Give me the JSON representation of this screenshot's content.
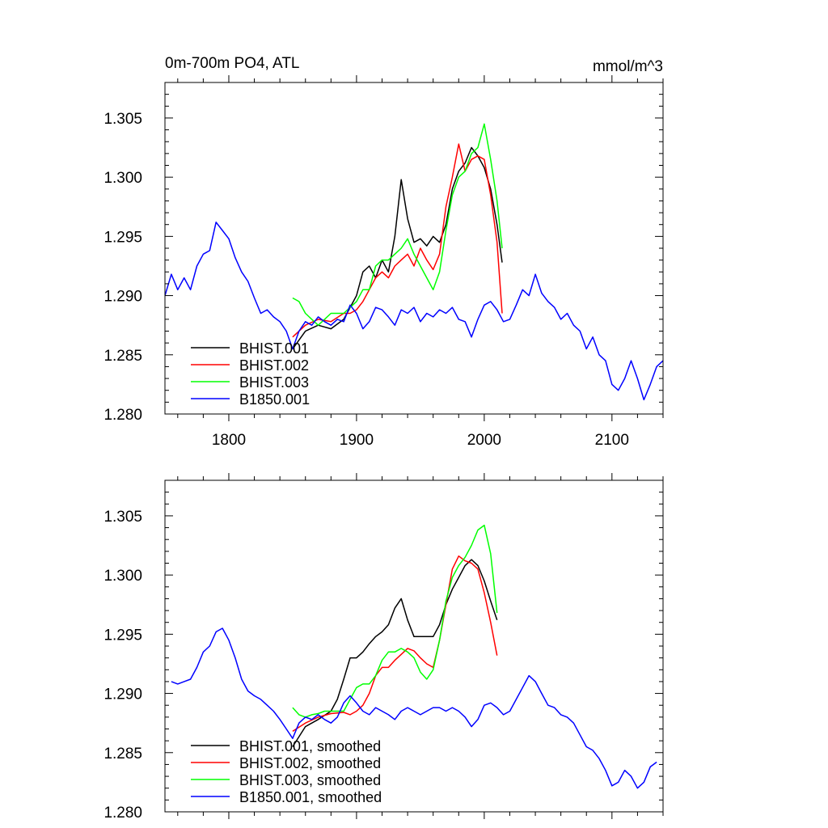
{
  "chart_data": [
    {
      "type": "line",
      "title": "0m-700m PO4, ATL",
      "units": "mmol/m^3",
      "xlim": [
        1750,
        2140
      ],
      "ylim": [
        1.28,
        1.308
      ],
      "xticks": [
        1800,
        1900,
        2000,
        2100
      ],
      "xtick_labels": [
        "1800",
        "1900",
        "2000",
        "2100"
      ],
      "yticks": [
        1.28,
        1.285,
        1.29,
        1.295,
        1.3,
        1.305
      ],
      "ytick_labels": [
        "1.280",
        "1.285",
        "1.290",
        "1.295",
        "1.300",
        "1.305"
      ],
      "legend_position": "bottom-left",
      "series": [
        {
          "name": "BHIST.001",
          "color": "#000000",
          "x": [
            1850,
            1860,
            1870,
            1880,
            1890,
            1900,
            1905,
            1910,
            1915,
            1920,
            1925,
            1930,
            1935,
            1940,
            1945,
            1950,
            1955,
            1960,
            1965,
            1970,
            1975,
            1980,
            1985,
            1990,
            1995,
            2000,
            2005,
            2010,
            2014
          ],
          "y": [
            1.2855,
            1.287,
            1.2875,
            1.2872,
            1.288,
            1.29,
            1.292,
            1.2925,
            1.2915,
            1.293,
            1.292,
            1.295,
            1.2998,
            1.2965,
            1.2945,
            1.2948,
            1.2942,
            1.295,
            1.2945,
            1.296,
            1.299,
            1.3005,
            1.3012,
            1.3025,
            1.3018,
            1.3008,
            1.299,
            1.296,
            1.2928
          ]
        },
        {
          "name": "BHIST.002",
          "color": "#ff0000",
          "x": [
            1850,
            1860,
            1870,
            1880,
            1890,
            1895,
            1900,
            1905,
            1910,
            1915,
            1920,
            1925,
            1930,
            1935,
            1940,
            1945,
            1950,
            1955,
            1960,
            1965,
            1970,
            1975,
            1980,
            1985,
            1990,
            1995,
            2000,
            2005,
            2010,
            2014
          ],
          "y": [
            1.2865,
            1.2875,
            1.288,
            1.2878,
            1.2885,
            1.2885,
            1.2888,
            1.2895,
            1.2905,
            1.2915,
            1.292,
            1.2915,
            1.2925,
            1.293,
            1.2935,
            1.2925,
            1.294,
            1.293,
            1.2922,
            1.2935,
            1.2975,
            1.3,
            1.3028,
            1.3005,
            1.3015,
            1.3018,
            1.3015,
            1.2985,
            1.2945,
            1.2885
          ]
        },
        {
          "name": "BHIST.003",
          "color": "#00ff00",
          "x": [
            1850,
            1855,
            1860,
            1865,
            1870,
            1875,
            1880,
            1890,
            1900,
            1905,
            1910,
            1915,
            1920,
            1925,
            1930,
            1935,
            1940,
            1945,
            1950,
            1955,
            1960,
            1965,
            1970,
            1975,
            1980,
            1985,
            1990,
            1995,
            2000,
            2005,
            2010,
            2014
          ],
          "y": [
            1.2898,
            1.2895,
            1.2885,
            1.288,
            1.2875,
            1.288,
            1.2885,
            1.2885,
            1.2895,
            1.2905,
            1.2905,
            1.2925,
            1.293,
            1.293,
            1.2935,
            1.294,
            1.2948,
            1.2935,
            1.2925,
            1.2915,
            1.2905,
            1.292,
            1.2955,
            1.2985,
            1.3,
            1.3005,
            1.302,
            1.3025,
            1.3045,
            1.3015,
            1.298,
            1.294
          ]
        },
        {
          "name": "B1850.001",
          "color": "#0000ff",
          "x": [
            1750,
            1755,
            1760,
            1765,
            1770,
            1775,
            1780,
            1785,
            1790,
            1795,
            1800,
            1805,
            1810,
            1815,
            1820,
            1825,
            1830,
            1835,
            1840,
            1845,
            1850,
            1855,
            1860,
            1865,
            1870,
            1875,
            1880,
            1885,
            1890,
            1895,
            1900,
            1905,
            1910,
            1915,
            1920,
            1925,
            1930,
            1935,
            1940,
            1945,
            1950,
            1955,
            1960,
            1965,
            1970,
            1975,
            1980,
            1985,
            1990,
            1995,
            2000,
            2005,
            2010,
            2015,
            2020,
            2025,
            2030,
            2035,
            2040,
            2045,
            2050,
            2055,
            2060,
            2065,
            2070,
            2075,
            2080,
            2085,
            2090,
            2095,
            2100,
            2105,
            2110,
            2115,
            2120,
            2125,
            2130,
            2135,
            2140
          ],
          "y": [
            1.29,
            1.2918,
            1.2905,
            1.2915,
            1.2905,
            1.2925,
            1.2935,
            1.2938,
            1.2962,
            1.2955,
            1.2948,
            1.2932,
            1.292,
            1.2912,
            1.2898,
            1.2885,
            1.2888,
            1.2882,
            1.2878,
            1.287,
            1.2855,
            1.287,
            1.2878,
            1.2875,
            1.2882,
            1.2878,
            1.2875,
            1.288,
            1.2878,
            1.2892,
            1.2885,
            1.2872,
            1.2878,
            1.289,
            1.2888,
            1.2882,
            1.2875,
            1.2888,
            1.2885,
            1.289,
            1.2878,
            1.2885,
            1.2882,
            1.2888,
            1.2885,
            1.289,
            1.288,
            1.2878,
            1.2865,
            1.288,
            1.2892,
            1.2895,
            1.2888,
            1.2878,
            1.288,
            1.2892,
            1.2905,
            1.29,
            1.2918,
            1.2902,
            1.2895,
            1.289,
            1.288,
            1.2885,
            1.2875,
            1.287,
            1.2855,
            1.2865,
            1.285,
            1.2845,
            1.2825,
            1.282,
            1.283,
            1.2845,
            1.283,
            1.2812,
            1.2825,
            1.284,
            1.2845
          ]
        }
      ]
    },
    {
      "type": "line",
      "title": "",
      "units": "",
      "xlim": [
        1750,
        2140
      ],
      "ylim": [
        1.28,
        1.308
      ],
      "xticks": [
        1800,
        1900,
        2000,
        2100
      ],
      "xtick_labels": [],
      "yticks": [
        1.28,
        1.285,
        1.29,
        1.295,
        1.3,
        1.305
      ],
      "ytick_labels": [
        "1.280",
        "1.285",
        "1.290",
        "1.295",
        "1.300",
        "1.305"
      ],
      "legend_position": "bottom-left",
      "series": [
        {
          "name": "BHIST.001, smoothed",
          "color": "#000000",
          "x": [
            1850,
            1860,
            1870,
            1880,
            1885,
            1890,
            1895,
            1900,
            1905,
            1910,
            1915,
            1920,
            1925,
            1930,
            1935,
            1940,
            1945,
            1950,
            1955,
            1960,
            1965,
            1970,
            1975,
            1980,
            1985,
            1990,
            1995,
            2000,
            2005,
            2010
          ],
          "y": [
            1.2855,
            1.2872,
            1.2878,
            1.2885,
            1.2895,
            1.2912,
            1.293,
            1.293,
            1.2935,
            1.2942,
            1.2948,
            1.2952,
            1.2958,
            1.2972,
            1.298,
            1.2962,
            1.2948,
            1.2948,
            1.2948,
            1.2948,
            1.2958,
            1.2975,
            1.2988,
            1.2998,
            1.3008,
            1.3013,
            1.3008,
            1.2995,
            1.2978,
            1.2962
          ]
        },
        {
          "name": "BHIST.002, smoothed",
          "color": "#ff0000",
          "x": [
            1850,
            1860,
            1870,
            1880,
            1890,
            1895,
            1900,
            1905,
            1910,
            1915,
            1920,
            1925,
            1930,
            1935,
            1940,
            1945,
            1950,
            1955,
            1960,
            1965,
            1970,
            1975,
            1980,
            1985,
            1990,
            1995,
            2000,
            2005,
            2010
          ],
          "y": [
            1.2868,
            1.2875,
            1.288,
            1.2883,
            1.2884,
            1.2882,
            1.2885,
            1.289,
            1.29,
            1.2915,
            1.2922,
            1.2922,
            1.2928,
            1.2933,
            1.2938,
            1.2936,
            1.293,
            1.2925,
            1.2922,
            1.2945,
            1.2975,
            1.3005,
            1.3016,
            1.3012,
            1.301,
            1.3005,
            1.2985,
            1.296,
            1.2932
          ]
        },
        {
          "name": "BHIST.003, smoothed",
          "color": "#00ff00",
          "x": [
            1850,
            1855,
            1860,
            1865,
            1870,
            1875,
            1880,
            1890,
            1895,
            1900,
            1905,
            1910,
            1915,
            1920,
            1925,
            1930,
            1935,
            1940,
            1945,
            1950,
            1955,
            1960,
            1965,
            1970,
            1975,
            1980,
            1985,
            1990,
            1995,
            2000,
            2005,
            2010
          ],
          "y": [
            1.2888,
            1.2882,
            1.288,
            1.2882,
            1.2883,
            1.2885,
            1.2885,
            1.2885,
            1.2895,
            1.2905,
            1.2908,
            1.2908,
            1.2915,
            1.2928,
            1.2935,
            1.2935,
            1.2938,
            1.2935,
            1.293,
            1.2918,
            1.2912,
            1.292,
            1.2945,
            1.2978,
            1.2998,
            1.3008,
            1.3015,
            1.3025,
            1.3038,
            1.3042,
            1.3018,
            1.2968
          ]
        },
        {
          "name": "B1850.001, smoothed",
          "color": "#0000ff",
          "x": [
            1755,
            1760,
            1765,
            1770,
            1775,
            1780,
            1785,
            1790,
            1795,
            1800,
            1805,
            1810,
            1815,
            1820,
            1825,
            1830,
            1835,
            1840,
            1845,
            1850,
            1855,
            1860,
            1865,
            1870,
            1875,
            1880,
            1885,
            1890,
            1895,
            1900,
            1905,
            1910,
            1915,
            1920,
            1925,
            1930,
            1935,
            1940,
            1945,
            1950,
            1955,
            1960,
            1965,
            1970,
            1975,
            1980,
            1985,
            1990,
            1995,
            2000,
            2005,
            2010,
            2015,
            2020,
            2025,
            2030,
            2035,
            2040,
            2045,
            2050,
            2055,
            2060,
            2065,
            2070,
            2075,
            2080,
            2085,
            2090,
            2095,
            2100,
            2105,
            2110,
            2115,
            2120,
            2125,
            2130,
            2135
          ],
          "y": [
            1.291,
            1.2908,
            1.291,
            1.2912,
            1.2922,
            1.2935,
            1.294,
            1.2952,
            1.2955,
            1.2945,
            1.293,
            1.2912,
            1.2902,
            1.2898,
            1.2895,
            1.289,
            1.2885,
            1.2878,
            1.287,
            1.2862,
            1.2875,
            1.288,
            1.2878,
            1.2882,
            1.2878,
            1.2875,
            1.288,
            1.2892,
            1.2898,
            1.2892,
            1.2885,
            1.2882,
            1.2888,
            1.2885,
            1.2882,
            1.2878,
            1.2885,
            1.2888,
            1.2885,
            1.2882,
            1.2885,
            1.2888,
            1.2888,
            1.2885,
            1.2888,
            1.2885,
            1.288,
            1.2872,
            1.2878,
            1.289,
            1.2892,
            1.2888,
            1.2882,
            1.2885,
            1.2895,
            1.2905,
            1.2915,
            1.291,
            1.29,
            1.289,
            1.2888,
            1.2882,
            1.288,
            1.2875,
            1.2865,
            1.2855,
            1.2852,
            1.2845,
            1.2835,
            1.2822,
            1.2825,
            1.2835,
            1.283,
            1.282,
            1.2825,
            1.2838,
            1.2842
          ]
        }
      ]
    }
  ]
}
